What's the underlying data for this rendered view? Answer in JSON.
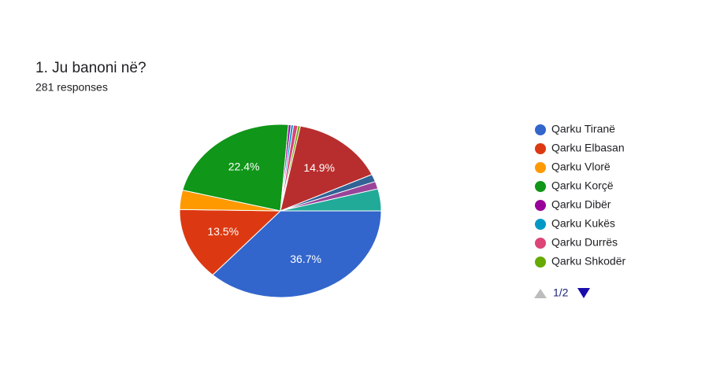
{
  "chart_data": {
    "type": "pie",
    "title": "1.  Ju banoni në?",
    "subtitle": "281 responses",
    "categories": [
      "Qarku Tiranë",
      "Qarku Elbasan",
      "Qarku Vlorë",
      "Qarku Korçë",
      "Qarku Dibër",
      "Qarku Kukës",
      "Qarku Durrës",
      "Qarku Shkodër",
      null,
      null,
      null,
      null
    ],
    "values": [
      36.7,
      13.5,
      3.6,
      22.4,
      0.4,
      0.4,
      0.7,
      0.4,
      14.9,
      1.4,
      1.4,
      4.1
    ],
    "value_labels": [
      "36.7%",
      "13.5%",
      null,
      "22.4%",
      null,
      null,
      null,
      null,
      "14.9%",
      null,
      null,
      null
    ],
    "colors": [
      "#3366cc",
      "#dc3912",
      "#ff9900",
      "#109618",
      "#990099",
      "#0099c6",
      "#dd4477",
      "#66aa00",
      "#b82e2e",
      "#316395",
      "#994499",
      "#22aa99"
    ],
    "legend_page": "1/2"
  }
}
